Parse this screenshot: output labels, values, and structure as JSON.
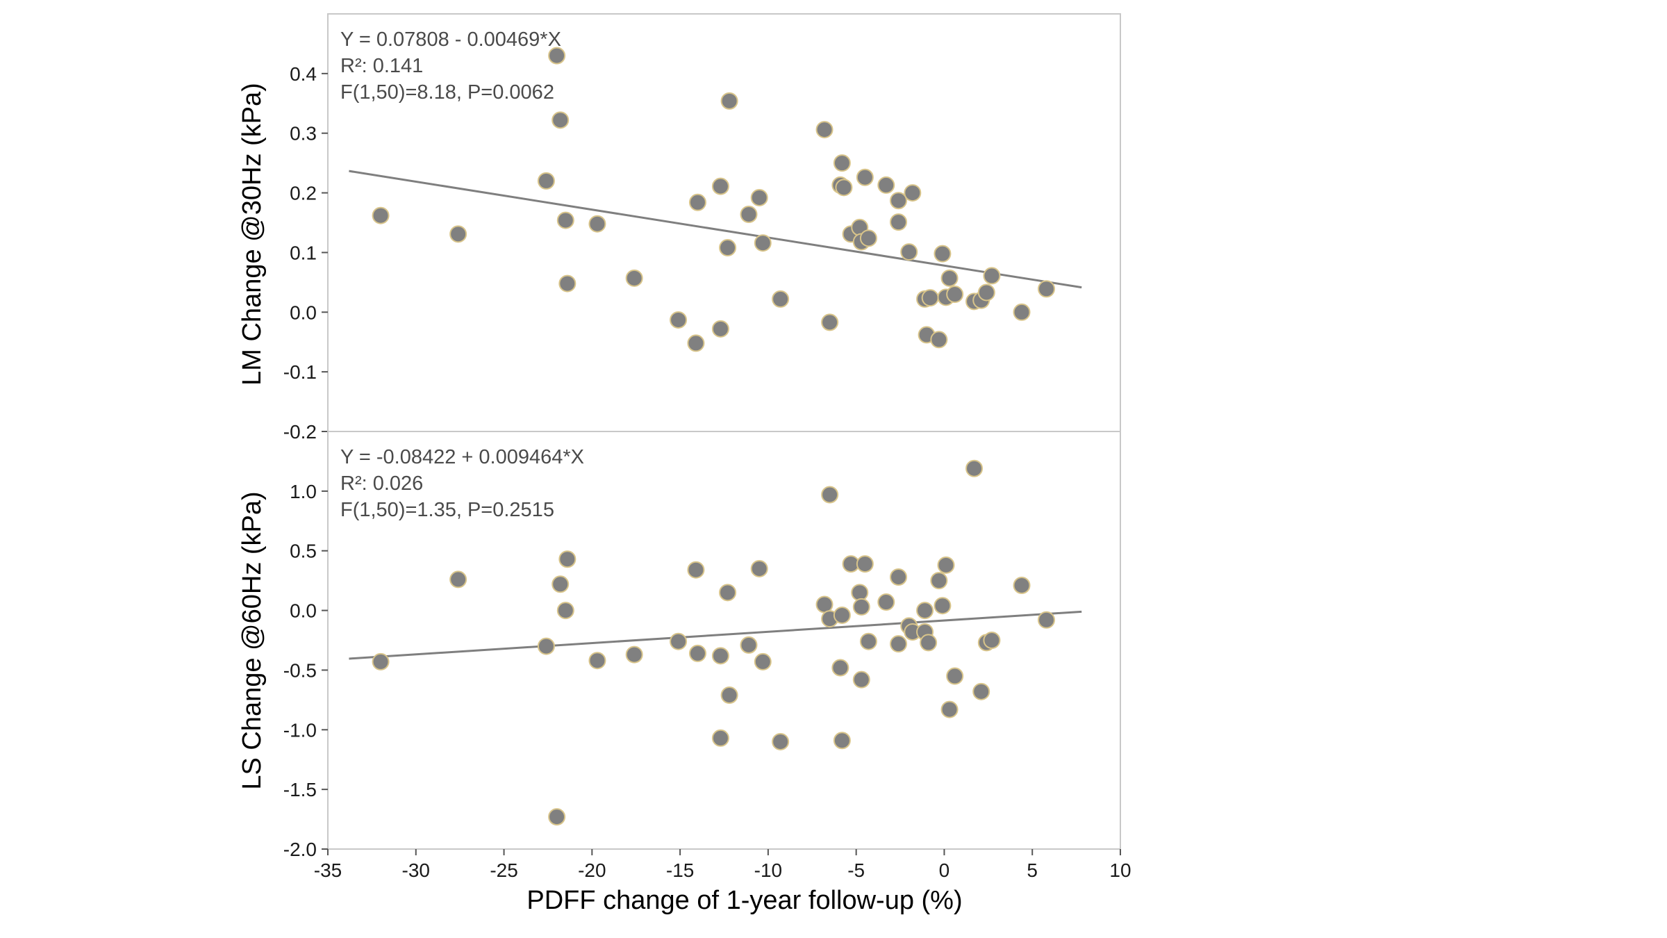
{
  "chart_data": [
    {
      "type": "scatter",
      "panel": "top",
      "ylabel": "LM Change @30Hz (kPa)",
      "xlabel": "",
      "xlim": [
        -35,
        10
      ],
      "ylim": [
        -0.2,
        0.5
      ],
      "yticks": [
        -0.2,
        -0.1,
        0.0,
        0.1,
        0.2,
        0.3,
        0.4
      ],
      "ytick_labels": [
        "-0.2",
        "-0.1",
        "0.0",
        "0.1",
        "0.2",
        "0.3",
        "0.4"
      ],
      "grid": false,
      "annotations": [
        "Y = 0.07808 - 0.00469*X",
        "R²: 0.141",
        "F(1,50)=8.18, P=0.0062"
      ],
      "fit_line": {
        "intercept": 0.07808,
        "slope": -0.00469,
        "x_range": [
          -33.8,
          7.8
        ]
      },
      "points": [
        {
          "x": -32.0,
          "y": 0.162
        },
        {
          "x": -27.6,
          "y": 0.131
        },
        {
          "x": -22.0,
          "y": 0.43
        },
        {
          "x": -21.8,
          "y": 0.322
        },
        {
          "x": -22.6,
          "y": 0.22
        },
        {
          "x": -21.5,
          "y": 0.154
        },
        {
          "x": -21.4,
          "y": 0.048
        },
        {
          "x": -19.7,
          "y": 0.148
        },
        {
          "x": -17.6,
          "y": 0.057
        },
        {
          "x": -15.1,
          "y": -0.013
        },
        {
          "x": -14.1,
          "y": -0.052
        },
        {
          "x": -14.0,
          "y": 0.184
        },
        {
          "x": -12.7,
          "y": 0.211
        },
        {
          "x": -12.7,
          "y": -0.028
        },
        {
          "x": -12.3,
          "y": 0.108
        },
        {
          "x": -12.2,
          "y": 0.354
        },
        {
          "x": -11.1,
          "y": 0.164
        },
        {
          "x": -10.5,
          "y": 0.192
        },
        {
          "x": -10.3,
          "y": 0.116
        },
        {
          "x": -9.3,
          "y": 0.022
        },
        {
          "x": -6.8,
          "y": 0.306
        },
        {
          "x": -6.5,
          "y": -0.017
        },
        {
          "x": -5.9,
          "y": 0.213
        },
        {
          "x": -5.8,
          "y": 0.25
        },
        {
          "x": -5.7,
          "y": 0.209
        },
        {
          "x": -5.3,
          "y": 0.131
        },
        {
          "x": -4.8,
          "y": 0.142
        },
        {
          "x": -4.7,
          "y": 0.118
        },
        {
          "x": -4.5,
          "y": 0.226
        },
        {
          "x": -4.3,
          "y": 0.124
        },
        {
          "x": -3.3,
          "y": 0.213
        },
        {
          "x": -2.6,
          "y": 0.187
        },
        {
          "x": -2.6,
          "y": 0.151
        },
        {
          "x": -2.0,
          "y": 0.101
        },
        {
          "x": -1.8,
          "y": 0.2
        },
        {
          "x": -1.1,
          "y": 0.022
        },
        {
          "x": -1.0,
          "y": -0.038
        },
        {
          "x": -0.8,
          "y": 0.024
        },
        {
          "x": -0.3,
          "y": -0.046
        },
        {
          "x": -0.1,
          "y": 0.098
        },
        {
          "x": 0.1,
          "y": 0.025
        },
        {
          "x": 0.3,
          "y": 0.057
        },
        {
          "x": 0.6,
          "y": 0.03
        },
        {
          "x": 1.7,
          "y": 0.018
        },
        {
          "x": 2.1,
          "y": 0.02
        },
        {
          "x": 2.4,
          "y": 0.033
        },
        {
          "x": 2.7,
          "y": 0.061
        },
        {
          "x": 4.4,
          "y": 0.0
        },
        {
          "x": 5.8,
          "y": 0.039
        }
      ]
    },
    {
      "type": "scatter",
      "panel": "bottom",
      "ylabel": "LS Change @60Hz (kPa)",
      "xlabel": "PDFF change of 1-year follow-up (%)",
      "xlim": [
        -35,
        10
      ],
      "ylim": [
        -2.0,
        1.5
      ],
      "xticks": [
        -35,
        -30,
        -25,
        -20,
        -15,
        -10,
        -5,
        0,
        5,
        10
      ],
      "xtick_labels": [
        "-35",
        "-30",
        "-25",
        "-20",
        "-15",
        "-10",
        "-5",
        "0",
        "5",
        "10"
      ],
      "yticks": [
        -2.0,
        -1.5,
        -1.0,
        -0.5,
        0.0,
        0.5,
        1.0
      ],
      "ytick_labels": [
        "-2.0",
        "-1.5",
        "-1.0",
        "-0.5",
        "0.0",
        "0.5",
        "1.0"
      ],
      "grid": false,
      "annotations": [
        "Y = -0.08422 + 0.009464*X",
        "R²: 0.026",
        "F(1,50)=1.35, P=0.2515"
      ],
      "fit_line": {
        "intercept": -0.08422,
        "slope": 0.009464,
        "x_range": [
          -33.8,
          7.8
        ]
      },
      "points": [
        {
          "x": -32.0,
          "y": -0.43
        },
        {
          "x": -27.6,
          "y": 0.26
        },
        {
          "x": -22.6,
          "y": -0.3
        },
        {
          "x": -22.0,
          "y": -1.73
        },
        {
          "x": -21.8,
          "y": 0.22
        },
        {
          "x": -21.5,
          "y": 0.0
        },
        {
          "x": -21.4,
          "y": 0.43
        },
        {
          "x": -19.7,
          "y": -0.42
        },
        {
          "x": -17.6,
          "y": -0.37
        },
        {
          "x": -15.1,
          "y": -0.26
        },
        {
          "x": -14.1,
          "y": 0.34
        },
        {
          "x": -14.0,
          "y": -0.36
        },
        {
          "x": -12.7,
          "y": -0.38
        },
        {
          "x": -12.7,
          "y": -1.07
        },
        {
          "x": -12.3,
          "y": 0.15
        },
        {
          "x": -12.2,
          "y": -0.71
        },
        {
          "x": -11.1,
          "y": -0.29
        },
        {
          "x": -10.5,
          "y": 0.35
        },
        {
          "x": -10.3,
          "y": -0.43
        },
        {
          "x": -9.3,
          "y": -1.1
        },
        {
          "x": -6.8,
          "y": 0.05
        },
        {
          "x": -6.5,
          "y": 0.97
        },
        {
          "x": -6.5,
          "y": -0.07
        },
        {
          "x": -5.9,
          "y": -0.48
        },
        {
          "x": -5.8,
          "y": -0.04
        },
        {
          "x": -5.8,
          "y": -1.09
        },
        {
          "x": -5.3,
          "y": 0.39
        },
        {
          "x": -4.8,
          "y": 0.15
        },
        {
          "x": -4.7,
          "y": -0.58
        },
        {
          "x": -4.7,
          "y": 0.03
        },
        {
          "x": -4.5,
          "y": 0.39
        },
        {
          "x": -4.3,
          "y": -0.26
        },
        {
          "x": -3.3,
          "y": 0.07
        },
        {
          "x": -2.6,
          "y": 0.28
        },
        {
          "x": -2.6,
          "y": -0.28
        },
        {
          "x": -2.0,
          "y": -0.13
        },
        {
          "x": -1.8,
          "y": -0.18
        },
        {
          "x": -1.1,
          "y": 0.0
        },
        {
          "x": -1.1,
          "y": -0.18
        },
        {
          "x": -0.9,
          "y": -0.27
        },
        {
          "x": -0.3,
          "y": 0.25
        },
        {
          "x": -0.1,
          "y": 0.04
        },
        {
          "x": 0.1,
          "y": 0.38
        },
        {
          "x": 0.3,
          "y": -0.83
        },
        {
          "x": 0.6,
          "y": -0.55
        },
        {
          "x": 1.7,
          "y": 1.19
        },
        {
          "x": 2.1,
          "y": -0.68
        },
        {
          "x": 2.4,
          "y": -0.27
        },
        {
          "x": 2.7,
          "y": -0.25
        },
        {
          "x": 4.4,
          "y": 0.21
        },
        {
          "x": 5.8,
          "y": -0.08
        }
      ]
    }
  ],
  "colors": {
    "marker_fill": "#808080",
    "marker_stroke": "#d8c48a",
    "fit_line": "#7f7f7f",
    "frame": "#c8c8c8",
    "axis": "#555555"
  }
}
